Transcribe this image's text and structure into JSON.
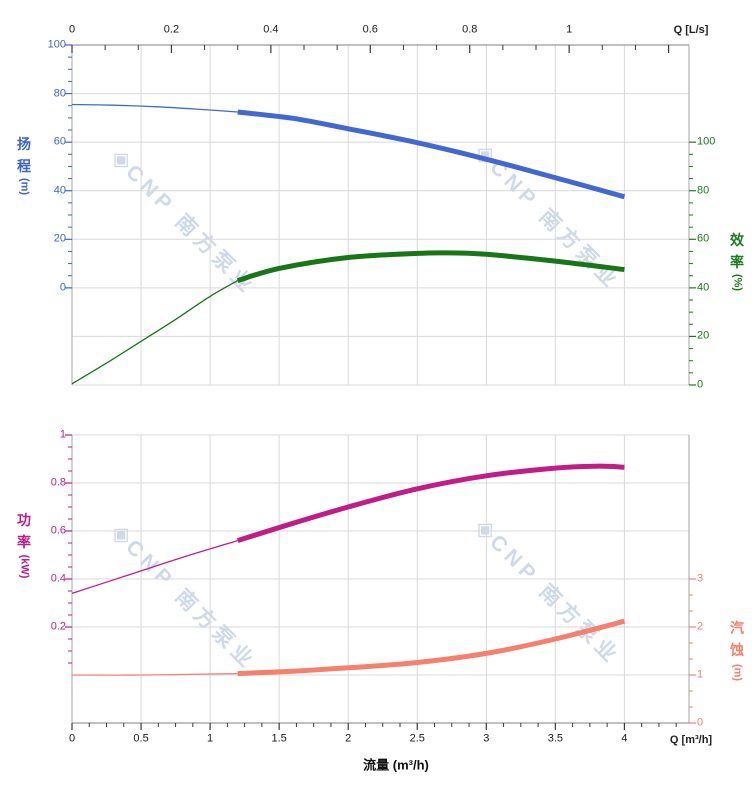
{
  "watermark": {
    "logo": "◈",
    "text": "CNP 南方泵业"
  },
  "axes": {
    "top": {
      "title": "Q [L/s]",
      "ticks": [
        "0",
        "0.2",
        "0.4",
        "0.6",
        "0.8",
        "1"
      ]
    },
    "bottom": {
      "title": "Q [m³/h]",
      "xlabel": "流量 (m³/h)",
      "ticks": [
        "0",
        "0.5",
        "1",
        "1.5",
        "2",
        "2.5",
        "3",
        "3.5",
        "4"
      ]
    },
    "head": {
      "chars": [
        "扬",
        "程"
      ],
      "unit": "(m)",
      "ticks": [
        "100",
        "80",
        "60",
        "40",
        "20",
        "0"
      ],
      "color": "#3c64cf"
    },
    "efficiency": {
      "chars": [
        "效",
        "率"
      ],
      "unit": "(%)",
      "ticks": [
        "100",
        "80",
        "60",
        "40",
        "20",
        "0"
      ],
      "color": "#1d7a1d"
    },
    "power": {
      "chars": [
        "功",
        "率"
      ],
      "unit": "(kW)",
      "ticks": [
        "1",
        "0.8",
        "0.6",
        "0.4",
        "0.2"
      ],
      "color": "#c01d87"
    },
    "npsh": {
      "chars": [
        "汽",
        "蚀"
      ],
      "unit": "(m)",
      "ticks": [
        "3",
        "2",
        "1",
        "0"
      ],
      "color": "#f5806d"
    }
  },
  "chart_data": {
    "type": "line",
    "x_label_bottom": "流量 (m³/h)",
    "x_label_top": "Q [L/s]",
    "x_unit": "m³/h",
    "x_range": [
      0,
      4
    ],
    "top_axis_unit": "L/s",
    "top_axis_ticks": [
      0,
      0.2,
      0.4,
      0.6,
      0.8,
      1
    ],
    "duty_range_start": 1.2,
    "grid": true,
    "panels": [
      {
        "title": "H-Q / η-Q",
        "series": [
          {
            "name": "head",
            "label": "扬程",
            "unit": "m",
            "color": "#4169d1",
            "axis_side": "left",
            "axis_range": [
              0,
              100
            ],
            "points": [
              [
                0,
                75.5
              ],
              [
                0.3,
                75.2
              ],
              [
                0.6,
                74.6
              ],
              [
                0.9,
                73.6
              ],
              [
                1.2,
                72.4
              ],
              [
                1.6,
                69.8
              ],
              [
                2.0,
                65.5
              ],
              [
                2.4,
                61.0
              ],
              [
                2.8,
                55.8
              ],
              [
                3.2,
                50.0
              ],
              [
                3.6,
                43.8
              ],
              [
                4.0,
                37.5
              ]
            ]
          },
          {
            "name": "efficiency",
            "label": "效率",
            "unit": "%",
            "color": "#177717",
            "axis_side": "right",
            "axis_range": [
              0,
              100
            ],
            "points": [
              [
                0,
                0.5
              ],
              [
                0.25,
                9
              ],
              [
                0.5,
                18
              ],
              [
                0.75,
                27
              ],
              [
                1.0,
                36.5
              ],
              [
                1.2,
                43
              ],
              [
                1.5,
                48
              ],
              [
                2.0,
                52.5
              ],
              [
                2.5,
                54.2
              ],
              [
                2.7,
                54.4
              ],
              [
                3.0,
                53.8
              ],
              [
                3.5,
                51
              ],
              [
                4.0,
                47.5
              ]
            ]
          }
        ]
      },
      {
        "title": "P-Q / NPSH-Q",
        "series": [
          {
            "name": "power",
            "label": "功率",
            "unit": "kW",
            "color": "#c01d87",
            "axis_side": "left",
            "axis_range": [
              0,
              1.2
            ],
            "points": [
              [
                0,
                0.34
              ],
              [
                0.4,
                0.415
              ],
              [
                0.8,
                0.49
              ],
              [
                1.2,
                0.56
              ],
              [
                1.6,
                0.632
              ],
              [
                2.0,
                0.7
              ],
              [
                2.5,
                0.776
              ],
              [
                3.0,
                0.83
              ],
              [
                3.5,
                0.862
              ],
              [
                3.8,
                0.87
              ],
              [
                4.0,
                0.866
              ]
            ]
          },
          {
            "name": "npsh",
            "label": "汽蚀",
            "unit": "m",
            "color": "#f5806d",
            "axis_side": "right",
            "axis_range": [
              0,
              6
            ],
            "points": [
              [
                0,
                1.0
              ],
              [
                0.5,
                1.0
              ],
              [
                1.0,
                1.02
              ],
              [
                1.2,
                1.03
              ],
              [
                1.6,
                1.08
              ],
              [
                2.0,
                1.15
              ],
              [
                2.5,
                1.26
              ],
              [
                3.0,
                1.45
              ],
              [
                3.5,
                1.75
              ],
              [
                4.0,
                2.12
              ]
            ]
          }
        ]
      }
    ]
  }
}
